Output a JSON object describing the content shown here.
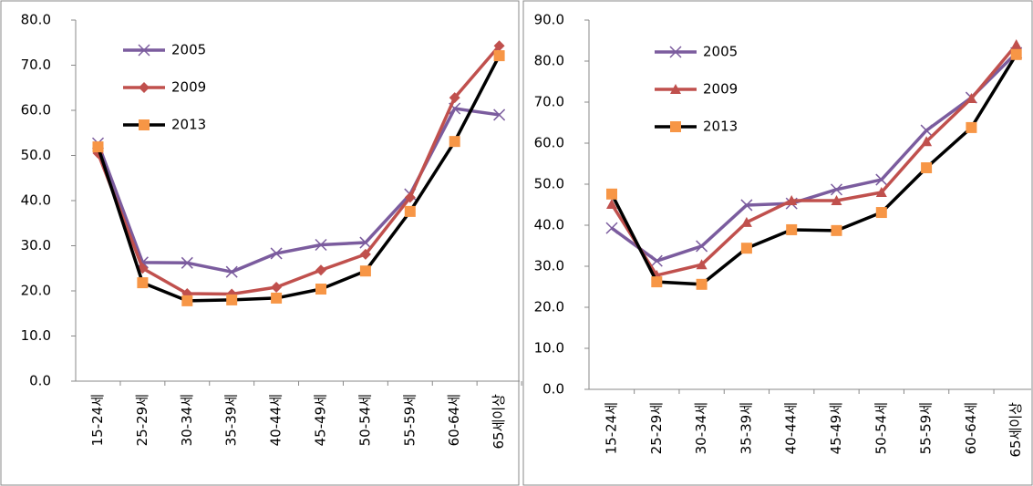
{
  "chart_data": [
    {
      "type": "line",
      "categories": [
        "15-24세",
        "25-29세",
        "30-34세",
        "35-39세",
        "40-44세",
        "45-49세",
        "50-54세",
        "55-59세",
        "60-64세",
        "65세이상"
      ],
      "series": [
        {
          "name": "2005",
          "color": "#7b5c9e",
          "marker": "x",
          "marker_color": "#7b5c9e",
          "values": [
            52.7,
            26.3,
            26.2,
            24.2,
            28.3,
            30.2,
            30.7,
            41.4,
            60.4,
            59.0
          ]
        },
        {
          "name": "2009",
          "color": "#c0504d",
          "marker": "diamond",
          "marker_color": "#c0504d",
          "values": [
            50.5,
            25.0,
            19.4,
            19.3,
            20.8,
            24.6,
            28.1,
            40.7,
            62.8,
            74.3
          ]
        },
        {
          "name": "2013",
          "color": "#000000",
          "marker": "square",
          "marker_color": "#f79646",
          "values": [
            51.9,
            21.8,
            17.8,
            18.0,
            18.4,
            20.4,
            24.4,
            37.6,
            53.1,
            72.1
          ]
        }
      ],
      "ylim": [
        0,
        80
      ],
      "yticks": [
        {
          "value": 0,
          "label": "0.0"
        },
        {
          "value": 10,
          "label": "10.0"
        },
        {
          "value": 20,
          "label": "20.0"
        },
        {
          "value": 30,
          "label": "30.0"
        },
        {
          "value": 40,
          "label": "40.0"
        },
        {
          "value": 50,
          "label": "50.0"
        },
        {
          "value": 60,
          "label": "60.0"
        },
        {
          "value": 70,
          "label": "70.0"
        },
        {
          "value": 80,
          "label": "80.0"
        }
      ],
      "grid": false,
      "legend": "upper left"
    },
    {
      "type": "line",
      "categories": [
        "15-24세",
        "25-29세",
        "30-34세",
        "35-39세",
        "40-44세",
        "45-49세",
        "50-54세",
        "55-59세",
        "60-64세",
        "65세이상"
      ],
      "series": [
        {
          "name": "2005",
          "color": "#7b5c9e",
          "marker": "x",
          "marker_color": "#7b5c9e",
          "values": [
            39.3,
            31.3,
            34.9,
            44.9,
            45.3,
            48.7,
            51.1,
            63.1,
            71.1,
            82.0
          ]
        },
        {
          "name": "2009",
          "color": "#c0504d",
          "marker": "triangle",
          "marker_color": "#c0504d",
          "values": [
            45.1,
            27.8,
            30.4,
            40.7,
            46.0,
            46.0,
            48.0,
            60.4,
            70.9,
            84.0
          ]
        },
        {
          "name": "2013",
          "color": "#000000",
          "marker": "square",
          "marker_color": "#f79646",
          "values": [
            47.6,
            26.2,
            25.6,
            34.4,
            38.9,
            38.7,
            43.1,
            54.0,
            63.8,
            81.6
          ]
        }
      ],
      "ylim": [
        0,
        90
      ],
      "yticks": [
        {
          "value": 0,
          "label": "0.0"
        },
        {
          "value": 10,
          "label": "10.0"
        },
        {
          "value": 20,
          "label": "20.0"
        },
        {
          "value": 30,
          "label": "30.0"
        },
        {
          "value": 40,
          "label": "40.0"
        },
        {
          "value": 50,
          "label": "50.0"
        },
        {
          "value": 60,
          "label": "60.0"
        },
        {
          "value": 70,
          "label": "70.0"
        },
        {
          "value": 80,
          "label": "80.0"
        },
        {
          "value": 90,
          "label": "90.0"
        }
      ],
      "grid": false,
      "legend": "upper left"
    }
  ]
}
